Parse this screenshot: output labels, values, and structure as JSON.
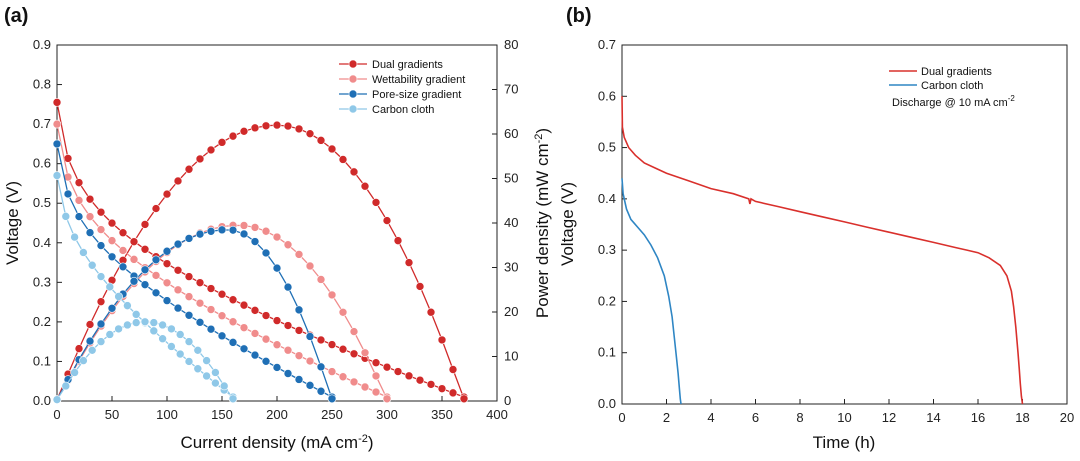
{
  "chart_data": [
    {
      "panel": "(a)",
      "type": "line",
      "xlabel": "Current density (mA cm",
      "xlabel_sup": "-2",
      "xlabel_end": ")",
      "ylabel": "Voltage (V)",
      "y2label": "Power density (mW cm",
      "y2label_sup": "-2",
      "y2label_end": ")",
      "xlim": [
        0,
        400
      ],
      "ylim": [
        0,
        0.9
      ],
      "y2lim": [
        0,
        80
      ],
      "xticks": [
        0,
        50,
        100,
        150,
        200,
        250,
        300,
        350,
        400
      ],
      "yticks": [
        "0.0",
        "0.1",
        "0.2",
        "0.3",
        "0.4",
        "0.5",
        "0.6",
        "0.7",
        "0.8",
        "0.9"
      ],
      "y2ticks": [
        "0",
        "10",
        "20",
        "30",
        "40",
        "50",
        "60",
        "70",
        "80"
      ],
      "legend_position": "top-right",
      "series": [
        {
          "name": "Dual gradients",
          "color": "#d02a2a",
          "ocv": 0.755,
          "imax": 370,
          "peak_power": 62,
          "peak_at": 200,
          "step": 10
        },
        {
          "name": "Wettability gradient",
          "color": "#f08c8c",
          "ocv": 0.7,
          "imax": 300,
          "peak_power": 39.5,
          "peak_at": 165,
          "step": 10
        },
        {
          "name": "Pore-size gradient",
          "color": "#1f6fb5",
          "ocv": 0.65,
          "imax": 250,
          "peak_power": 38.5,
          "peak_at": 155,
          "step": 10
        },
        {
          "name": "Carbon cloth",
          "color": "#8fc8e8",
          "ocv": 0.57,
          "imax": 160,
          "peak_power": 17.8,
          "peak_at": 80,
          "step": 8
        }
      ]
    },
    {
      "panel": "(b)",
      "type": "line",
      "xlabel": "Time (h)",
      "ylabel": "Voltage (V)",
      "xlim": [
        0,
        20
      ],
      "ylim": [
        0,
        0.7
      ],
      "xticks": [
        0,
        2,
        4,
        6,
        8,
        10,
        12,
        14,
        16,
        18,
        20
      ],
      "yticks": [
        "0.0",
        "0.1",
        "0.2",
        "0.3",
        "0.4",
        "0.5",
        "0.6",
        "0.7"
      ],
      "legend_position": "top-right",
      "annotation": "Discharge @ 10 mA cm",
      "annotation_sup": "-2",
      "series": [
        {
          "name": "Dual gradients",
          "color": "#d9302c",
          "x": [
            0,
            0.02,
            0.1,
            0.3,
            0.6,
            1.0,
            1.5,
            2.0,
            3.0,
            4.0,
            5.0,
            5.7,
            5.75,
            5.8,
            6.0,
            7.0,
            8.0,
            9.0,
            10.0,
            11.0,
            12.0,
            13.0,
            14.0,
            15.0,
            15.5,
            16.0,
            16.5,
            17.0,
            17.3,
            17.5,
            17.6,
            17.7,
            17.8,
            17.85,
            17.9,
            17.95,
            18.0
          ],
          "y": [
            0.6,
            0.54,
            0.52,
            0.5,
            0.485,
            0.47,
            0.46,
            0.45,
            0.435,
            0.42,
            0.41,
            0.4,
            0.39,
            0.4,
            0.395,
            0.385,
            0.375,
            0.365,
            0.355,
            0.345,
            0.335,
            0.325,
            0.315,
            0.305,
            0.3,
            0.295,
            0.285,
            0.27,
            0.25,
            0.22,
            0.19,
            0.15,
            0.1,
            0.07,
            0.04,
            0.015,
            0.0
          ]
        },
        {
          "name": "Carbon cloth",
          "color": "#2f86c4",
          "x": [
            0,
            0.05,
            0.2,
            0.4,
            0.7,
            1.0,
            1.3,
            1.6,
            1.9,
            2.1,
            2.25,
            2.35,
            2.45,
            2.52,
            2.58,
            2.62,
            2.65
          ],
          "y": [
            0.44,
            0.41,
            0.38,
            0.36,
            0.345,
            0.33,
            0.31,
            0.285,
            0.25,
            0.21,
            0.17,
            0.13,
            0.09,
            0.06,
            0.03,
            0.01,
            0.0
          ]
        }
      ]
    }
  ]
}
